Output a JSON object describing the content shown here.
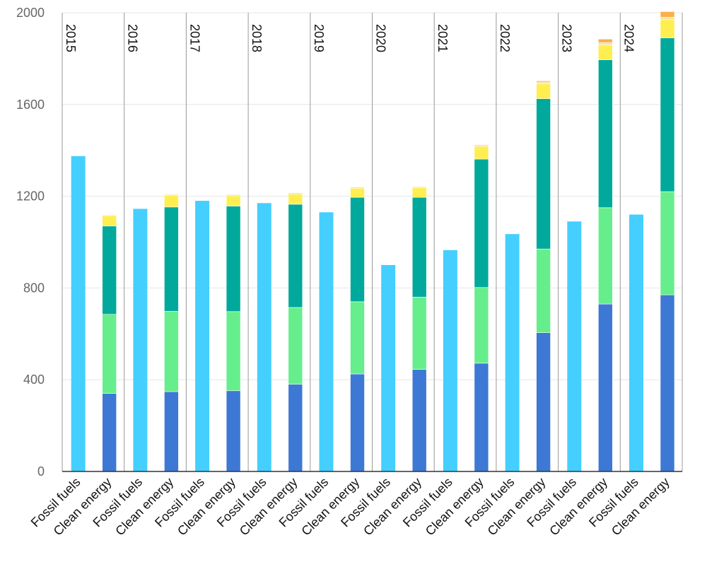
{
  "chart_data": {
    "type": "bar",
    "stacked": true,
    "title": "",
    "xlabel": "",
    "ylabel": "",
    "ylim": [
      0,
      2000
    ],
    "yticks": [
      0,
      400,
      800,
      1200,
      1600,
      2000
    ],
    "grid": true,
    "legend": "none",
    "groups": [
      "2015",
      "2016",
      "2017",
      "2018",
      "2019",
      "2020",
      "2021",
      "2022",
      "2023",
      "2024"
    ],
    "categories": [
      "Fossil fuels",
      "Clean energy"
    ],
    "fossil_values": [
      1375,
      1145,
      1180,
      1170,
      1130,
      900,
      965,
      1035,
      1090,
      1120
    ],
    "clean_series": [
      {
        "color": "#3d78d4",
        "values": [
          340,
          348,
          352,
          380,
          425,
          445,
          472,
          605,
          730,
          770
        ]
      },
      {
        "color": "#66ee8c",
        "values": [
          345,
          350,
          345,
          335,
          315,
          315,
          330,
          365,
          420,
          450
        ]
      },
      {
        "color": "#00a99b",
        "values": [
          385,
          455,
          460,
          450,
          455,
          435,
          560,
          655,
          645,
          670
        ]
      },
      {
        "color": "#ffee50",
        "values": [
          45,
          50,
          45,
          45,
          40,
          42,
          55,
          65,
          65,
          80
        ]
      },
      {
        "color": "#ede2a8",
        "values": [
          3,
          5,
          5,
          5,
          5,
          5,
          5,
          8,
          10,
          10
        ]
      },
      {
        "color": "#f9b04a",
        "values": [
          0,
          0,
          0,
          0,
          0,
          2,
          3,
          5,
          15,
          25
        ]
      }
    ],
    "colors": {
      "fossil": "#45cfff",
      "grid": "#e6e6e6",
      "separator": "#9a9a9a",
      "axis": "#333333",
      "tick_label": "#666666",
      "category_label": "#111111"
    }
  }
}
